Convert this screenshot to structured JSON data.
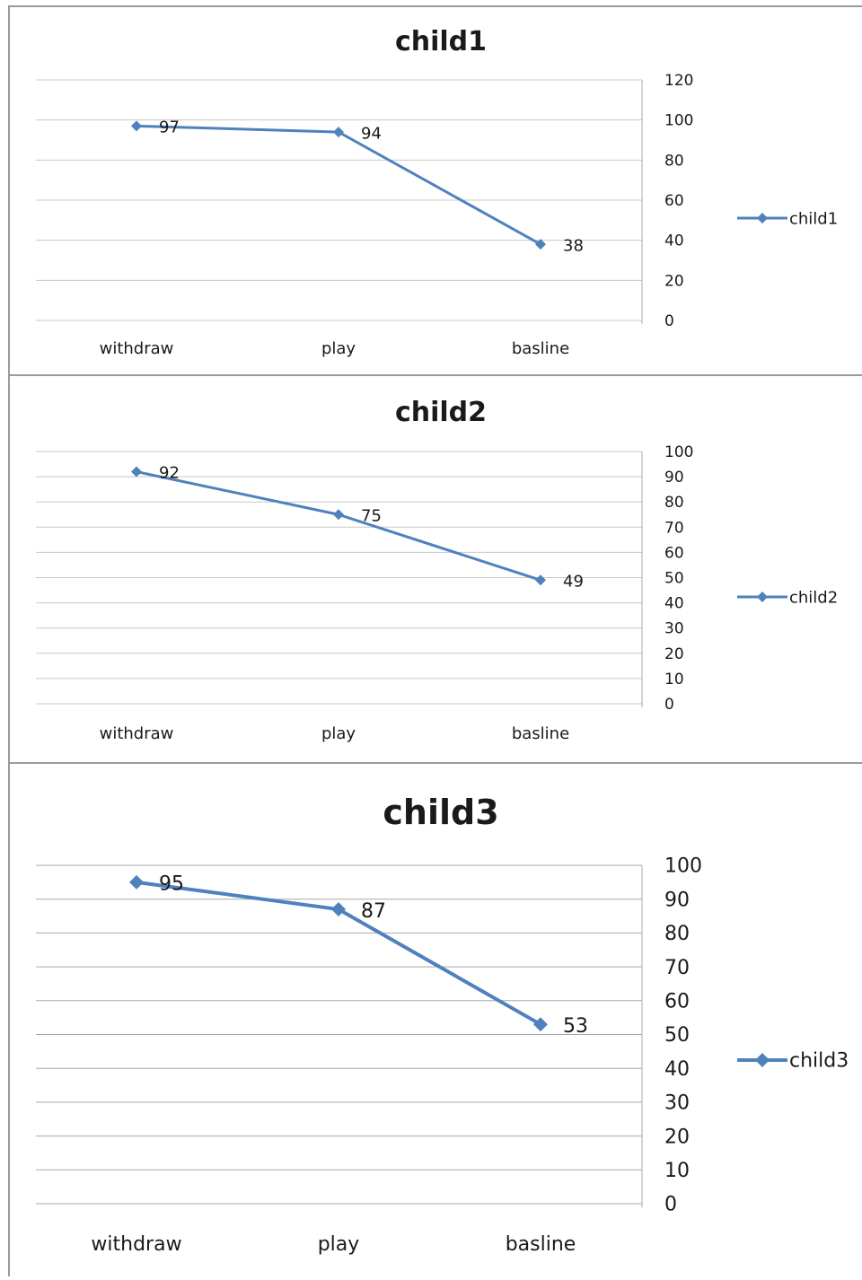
{
  "chart_data": [
    {
      "type": "line",
      "title": "child1",
      "categories": [
        "withdraw",
        "play",
        "basline"
      ],
      "series": [
        {
          "name": "child1",
          "values": [
            97,
            94,
            38
          ],
          "color": "#4f81bd"
        }
      ],
      "data_labels": [
        "97",
        "94",
        "38"
      ],
      "y_axis_position": "right",
      "ylim": [
        0,
        120
      ],
      "yticks": [
        0,
        20,
        40,
        60,
        80,
        100,
        120
      ],
      "legend": "right",
      "grid": true
    },
    {
      "type": "line",
      "title": "child2",
      "categories": [
        "withdraw",
        "play",
        "basline"
      ],
      "series": [
        {
          "name": "child2",
          "values": [
            92,
            75,
            49
          ],
          "color": "#4f81bd"
        }
      ],
      "data_labels": [
        "92",
        "75",
        "49"
      ],
      "y_axis_position": "right",
      "ylim": [
        0,
        100
      ],
      "yticks": [
        0,
        10,
        20,
        30,
        40,
        50,
        60,
        70,
        80,
        90,
        100
      ],
      "legend": "right",
      "grid": true
    },
    {
      "type": "line",
      "title": "child3",
      "categories": [
        "withdraw",
        "play",
        "basline"
      ],
      "series": [
        {
          "name": "child3",
          "values": [
            95,
            87,
            53
          ],
          "color": "#4f81bd"
        }
      ],
      "data_labels": [
        "95",
        "87",
        "53"
      ],
      "y_axis_position": "right",
      "ylim": [
        0,
        100
      ],
      "yticks": [
        0,
        10,
        20,
        30,
        40,
        50,
        60,
        70,
        80,
        90,
        100
      ],
      "legend": "right",
      "grid": true
    }
  ]
}
